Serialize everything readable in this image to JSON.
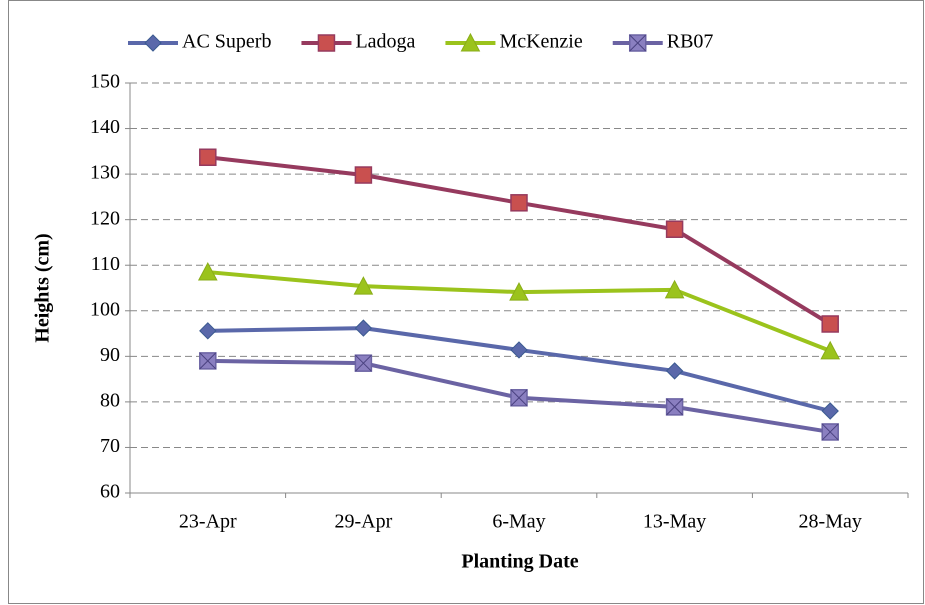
{
  "chart_data": {
    "type": "line",
    "xlabel": "Planting Date",
    "ylabel": "Heights (cm)",
    "categories": [
      "23-Apr",
      "29-Apr",
      "6-May",
      "13-May",
      "28-May"
    ],
    "series": [
      {
        "name": "AC Superb",
        "color": "#5a68aa",
        "marker": "diamond",
        "values": [
          95.6,
          96.2,
          91.4,
          86.8,
          78
        ]
      },
      {
        "name": "Ladoga",
        "color": "#963a5e",
        "marker": "square",
        "values": [
          133.7,
          129.8,
          123.7,
          117.9,
          97.1
        ]
      },
      {
        "name": "McKenzie",
        "color": "#9bc31c",
        "marker": "triangle",
        "values": [
          108.5,
          105.4,
          104.1,
          104.6,
          91.2
        ]
      },
      {
        "name": "RB07",
        "color": "#6b63a3",
        "marker": "xsquare",
        "values": [
          89,
          88.5,
          80.9,
          78.9,
          73.4
        ]
      }
    ],
    "ylim": [
      60,
      150
    ],
    "yticks": [
      60,
      70,
      80,
      90,
      100,
      110,
      120,
      130,
      140,
      150
    ],
    "grid": true,
    "legend": "top"
  }
}
